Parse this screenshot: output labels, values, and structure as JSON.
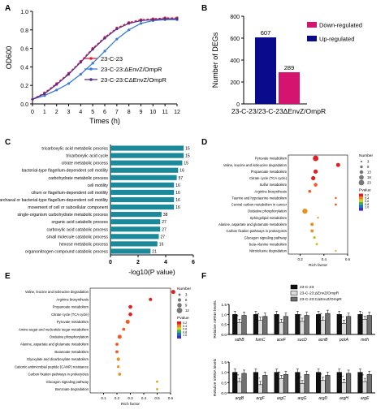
{
  "panels": {
    "A": "A",
    "B": "B",
    "C": "C",
    "D": "D",
    "E": "E",
    "F": "F"
  },
  "colors": {
    "wt": "#e8202a",
    "mut": "#3a7bd5",
    "comp": "#5b2c8f",
    "up": "#0a0a8c",
    "down": "#d4146e",
    "bar": "#1a8a9a",
    "dot_low": "#e02020",
    "dot_mid": "#c0d030",
    "dot_high": "#4030c0",
    "f_wt": "#111111",
    "f_mut": "#dddddd",
    "f_comp": "#707070"
  },
  "chart_data": [
    {
      "id": "A",
      "type": "line",
      "xlabel": "Times (h)",
      "ylabel": "OD600",
      "xlim": [
        0,
        12
      ],
      "ylim": [
        0,
        1.0
      ],
      "xticks": [
        0,
        1,
        2,
        3,
        4,
        5,
        6,
        7,
        8,
        9,
        10,
        11,
        12
      ],
      "yticks": [
        "0.0",
        "0.2",
        "0.4",
        "0.6",
        "0.8",
        "1.0"
      ],
      "x": [
        0,
        1,
        2,
        3,
        4,
        5,
        6,
        7,
        8,
        9,
        10,
        11,
        12
      ],
      "series": [
        {
          "name": "23-C-23",
          "values": [
            0.05,
            0.12,
            0.22,
            0.33,
            0.46,
            0.6,
            0.72,
            0.82,
            0.88,
            0.91,
            0.92,
            0.93,
            0.93
          ]
        },
        {
          "name": "23-C-23:ΔEnvZ/OmpR",
          "values": [
            0.05,
            0.09,
            0.15,
            0.22,
            0.32,
            0.44,
            0.57,
            0.7,
            0.8,
            0.87,
            0.9,
            0.91,
            0.91
          ]
        },
        {
          "name": "23-C-23:CΔEnvZ/OmpR",
          "values": [
            0.05,
            0.11,
            0.21,
            0.32,
            0.45,
            0.59,
            0.71,
            0.81,
            0.87,
            0.9,
            0.91,
            0.92,
            0.92
          ]
        }
      ]
    },
    {
      "id": "B",
      "type": "bar",
      "xlabel": "23-C-23/23-C-23ΔEnvZ/OmpR",
      "ylabel": "Number of DEGs",
      "ylim": [
        0,
        800
      ],
      "yticks": [
        "0",
        "200",
        "400",
        "600",
        "800"
      ],
      "categories": [
        "Up-regulated",
        "Down-regulated"
      ],
      "values": [
        607,
        289
      ],
      "data_labels": [
        "607",
        "289"
      ],
      "legend": [
        "Down-regulated",
        "Up-regulated"
      ]
    },
    {
      "id": "C",
      "type": "bar",
      "orientation": "horizontal",
      "xlabel": "-log10(P value)",
      "xlim": [
        0,
        6
      ],
      "xticks": [
        "0",
        "2",
        "4",
        "6"
      ],
      "categories": [
        "tricarboxylic acid metabolic process",
        "tricarboxylic acid cycle",
        "citrate metabolic process",
        "bacterial-type flagellum-dependent cell motility",
        "carbohydrate metabolic process",
        "cell motility",
        "cilium or flagellum-dependent cell motility",
        "archaeal or bacterial-type flagellum-dependent cell motility",
        "movement of cell or subcellular component",
        "single-organism carbohydrate metabolic process",
        "organic acid catabolic process",
        "carboxylic acid catabolic process",
        "small molecule catabolic process",
        "hexose metabolic process",
        "organonitrogen compound catabolic process"
      ],
      "values": [
        5.3,
        5.3,
        5.2,
        4.9,
        4.8,
        4.6,
        4.6,
        4.6,
        4.6,
        3.7,
        3.6,
        3.6,
        3.5,
        3.4,
        2.9
      ],
      "data_labels": [
        "15",
        "15",
        "15",
        "16",
        "57",
        "16",
        "16",
        "16",
        "16",
        "38",
        "27",
        "27",
        "27",
        "16",
        "21"
      ]
    },
    {
      "id": "D",
      "type": "scatter",
      "xlabel": "Rich factor",
      "xlim": [
        0.1,
        0.6
      ],
      "xticks": [
        "0.2",
        "0.4",
        "0.6"
      ],
      "legend_size_title": "Number",
      "legend_size_labels": [
        "3",
        "8",
        "13",
        "18",
        "23"
      ],
      "legend_color_title": "Pvalue",
      "legend_color_labels": [
        "0.2",
        "0.4",
        "0.6",
        "0.8",
        "1.0"
      ],
      "categories": [
        "Pyruvate metabolism",
        "Valine, leucine and isoleucine degradation",
        "Propanoate metabolism",
        "Citrate cycle (TCA cycle)",
        "Sulfur metabolism",
        "Arginine biosynthesis",
        "Taurine and hypotaurine metabolism",
        "Central carbon metabolism in cancer",
        "Oxidative phosphorylation",
        "Sphingolipid metabolism",
        "Alanine, aspartate and glutamate metabolism",
        "Carbon fixation pathways in prokaryotes",
        "Glucagon signaling pathway",
        "beta-Alanine metabolism",
        "Nitrotoluene degradation"
      ],
      "x": [
        0.33,
        0.52,
        0.33,
        0.31,
        0.33,
        0.28,
        0.5,
        0.5,
        0.24,
        0.35,
        0.3,
        0.3,
        0.32,
        0.34,
        0.5
      ],
      "size": [
        23,
        15,
        16,
        16,
        13,
        9,
        4,
        5,
        21,
        3,
        11,
        10,
        7,
        5,
        3
      ],
      "pvalue": [
        0.05,
        0.05,
        0.05,
        0.05,
        0.1,
        0.1,
        0.15,
        0.15,
        0.2,
        0.2,
        0.2,
        0.2,
        0.25,
        0.3,
        0.3
      ]
    },
    {
      "id": "E",
      "type": "scatter",
      "xlabel": "Rich factor",
      "xlim": [
        0.0,
        0.6
      ],
      "xticks": [
        "0.1",
        "0.2",
        "0.3",
        "0.4",
        "0.5",
        "0.6"
      ],
      "legend_size_title": "Number",
      "legend_size_labels": [
        "3",
        "6",
        "9",
        "12"
      ],
      "legend_color_title": "Pvalue",
      "legend_color_labels": [
        "0.2",
        "0.4",
        "0.6",
        "0.8",
        "1.0"
      ],
      "categories": [
        "Valine, leucine and isoleucine degradation",
        "Arginine biosynthesis",
        "Propanoate metabolism",
        "Citrate cycle (TCA cycle)",
        "Pyruvate metabolism",
        "Amino sugar and nucleotide sugar metabolism",
        "Oxidative phosphorylation",
        "Alanine, aspartate and glutamate metabolism",
        "Butanoate metabolism",
        "Glyoxylate and dicarboxylate metabolism",
        "Cationic antimicrobial peptide (CAMP) resistance",
        "Carbon fixation pathways in prokaryotes",
        "Glucagon signaling pathway",
        "Benzoate degradation"
      ],
      "x": [
        0.62,
        0.45,
        0.3,
        0.3,
        0.28,
        0.25,
        0.22,
        0.2,
        0.2,
        0.21,
        0.21,
        0.22,
        0.5,
        0.5
      ],
      "size": [
        8,
        6,
        7,
        7,
        8,
        5,
        8,
        5,
        5,
        6,
        4,
        5,
        3,
        3
      ],
      "pvalue": [
        0.05,
        0.05,
        0.05,
        0.05,
        0.1,
        0.1,
        0.15,
        0.15,
        0.15,
        0.2,
        0.2,
        0.2,
        0.3,
        0.3
      ]
    },
    {
      "id": "F1",
      "type": "bar",
      "ylabel": "Relative mRNA levels",
      "ylim": [
        0,
        1.5
      ],
      "yticks": [
        "0.0",
        "0.5",
        "1.0",
        "1.5"
      ],
      "categories": [
        "sdhB",
        "fumC",
        "aceF",
        "sucD",
        "acnB",
        "pckA",
        "mdh"
      ],
      "series": [
        {
          "name": "23-C-23",
          "values": [
            1.0,
            1.0,
            1.0,
            1.0,
            1.0,
            1.0,
            1.0
          ]
        },
        {
          "name": "23-C-23:ΔEnvZ/OmpR",
          "values": [
            0.6,
            0.7,
            0.6,
            0.65,
            0.7,
            0.55,
            0.75
          ]
        },
        {
          "name": "23-C-23:CΔEnvZ/OmpR",
          "values": [
            0.95,
            0.9,
            0.9,
            0.95,
            1.05,
            0.9,
            0.95
          ]
        }
      ],
      "sig": [
        "**",
        "**",
        "*",
        "***",
        "**",
        "***",
        "*"
      ]
    },
    {
      "id": "F2",
      "type": "bar",
      "ylabel": "Relative mRNA levels",
      "ylim": [
        0,
        1.5
      ],
      "yticks": [
        "0.0",
        "0.5",
        "1.0",
        "1.5"
      ],
      "categories": [
        "argB",
        "argF",
        "argC",
        "argG",
        "argD",
        "argH",
        "argE"
      ],
      "series": [
        {
          "name": "23-C-23",
          "values": [
            1.0,
            1.0,
            1.0,
            1.0,
            1.0,
            1.0,
            1.0
          ]
        },
        {
          "name": "23-C-23:ΔEnvZ/OmpR",
          "values": [
            0.55,
            0.4,
            0.7,
            0.45,
            0.6,
            0.5,
            0.55
          ]
        },
        {
          "name": "23-C-23:CΔEnvZ/OmpR",
          "values": [
            0.95,
            0.85,
            0.9,
            0.9,
            0.85,
            0.95,
            0.9
          ]
        }
      ],
      "sig": [
        "***",
        "***",
        "**",
        "***",
        "**",
        "***",
        "**"
      ]
    }
  ]
}
